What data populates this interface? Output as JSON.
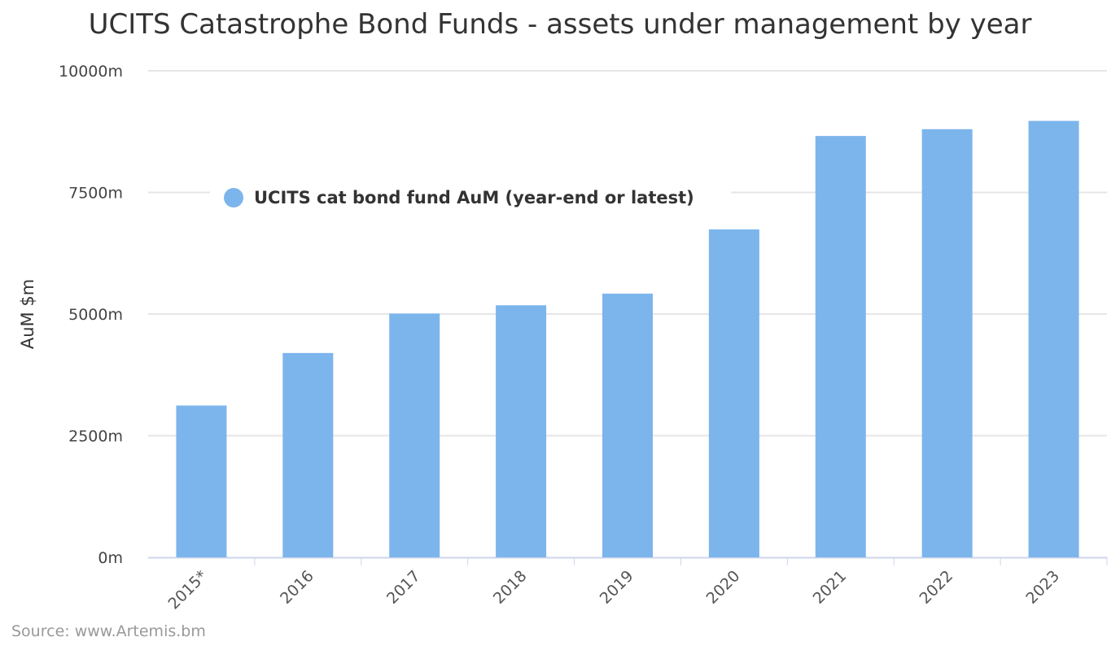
{
  "chart_data": {
    "type": "bar",
    "title": "UCITS Catastrophe Bond Funds - assets under management by year",
    "ylabel": "AuM $m",
    "xlabel": "",
    "categories": [
      "2015*",
      "2016",
      "2017",
      "2018",
      "2019",
      "2020",
      "2021",
      "2022",
      "2023"
    ],
    "series": [
      {
        "name": "UCITS cat bond fund AuM (year-end or latest)",
        "color": "#7cb5ec",
        "values": [
          3120,
          4200,
          5010,
          5180,
          5420,
          6740,
          8660,
          8800,
          8970
        ]
      }
    ],
    "ylim": [
      0,
      10000
    ],
    "yticks": [
      0,
      2500,
      5000,
      7500,
      10000
    ],
    "ytick_labels": [
      "0m",
      "2500m",
      "5000m",
      "7500m",
      "10000m"
    ],
    "grid": true,
    "legend_position": "top-left inside",
    "source": "Source: www.Artemis.bm"
  }
}
